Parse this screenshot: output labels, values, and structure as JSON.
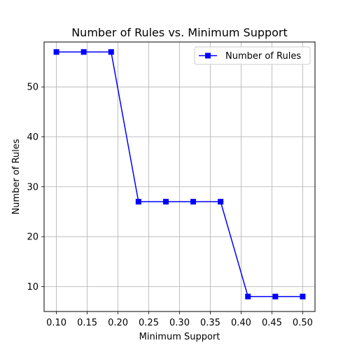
{
  "chart_data": {
    "type": "line",
    "title": "Number of Rules vs. Minimum Support",
    "xlabel": "Minimum Support",
    "ylabel": "Number of Rules",
    "x": [
      0.1,
      0.1444,
      0.1889,
      0.2333,
      0.2778,
      0.3222,
      0.3667,
      0.4111,
      0.4556,
      0.5
    ],
    "series": [
      {
        "name": "Number of Rules",
        "color": "#0000ff",
        "marker": "square",
        "values": [
          57,
          57,
          57,
          27,
          27,
          27,
          27,
          8,
          8,
          8
        ]
      }
    ],
    "xlim": [
      0.08,
      0.52
    ],
    "ylim": [
      5,
      59
    ],
    "xticks": [
      0.1,
      0.15,
      0.2,
      0.25,
      0.3,
      0.35,
      0.4,
      0.45,
      0.5
    ],
    "xtick_labels": [
      "0.10",
      "0.15",
      "0.20",
      "0.25",
      "0.30",
      "0.35",
      "0.40",
      "0.45",
      "0.50"
    ],
    "yticks": [
      10,
      20,
      30,
      40,
      50
    ],
    "ytick_labels": [
      "10",
      "20",
      "30",
      "40",
      "50"
    ],
    "grid": true,
    "legend_position": "top-right"
  }
}
